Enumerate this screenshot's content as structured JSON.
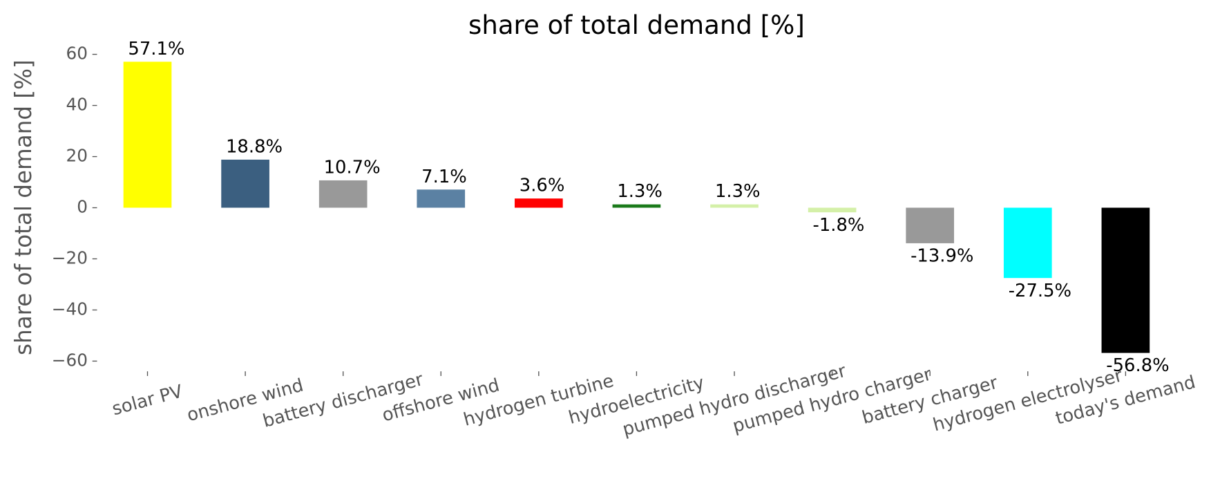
{
  "chart_data": {
    "type": "bar",
    "title": "share of total demand [%]",
    "y_label": "share of total demand [%]",
    "categories": [
      "solar PV",
      "onshore wind",
      "battery discharger",
      "offshore wind",
      "hydrogen turbine",
      "hydroelectricity",
      "pumped hydro discharger",
      "pumped hydro charger",
      "battery charger",
      "hydrogen electrolyser",
      "today's demand"
    ],
    "values": [
      57.1,
      18.8,
      10.7,
      7.1,
      3.6,
      1.3,
      1.3,
      -1.8,
      -13.9,
      -27.5,
      -56.8
    ],
    "value_labels": [
      "57.1%",
      "18.8%",
      "10.7%",
      "7.1%",
      "3.6%",
      "1.3%",
      "1.3%",
      "-1.8%",
      "-13.9%",
      "-27.5%",
      "-56.8%"
    ],
    "colors": [
      "#ffff00",
      "#3b5f80",
      "#999999",
      "#5b81a3",
      "#ff0000",
      "#1a7a1a",
      "#d4f0a8",
      "#d4f0a8",
      "#999999",
      "#00ffff",
      "#000000"
    ],
    "ylim": [
      -64,
      63
    ],
    "yticks": [
      {
        "value": -60,
        "label": "−60"
      },
      {
        "value": -40,
        "label": "−40"
      },
      {
        "value": -20,
        "label": "−20"
      },
      0,
      20,
      40,
      60
    ],
    "grid": false
  }
}
